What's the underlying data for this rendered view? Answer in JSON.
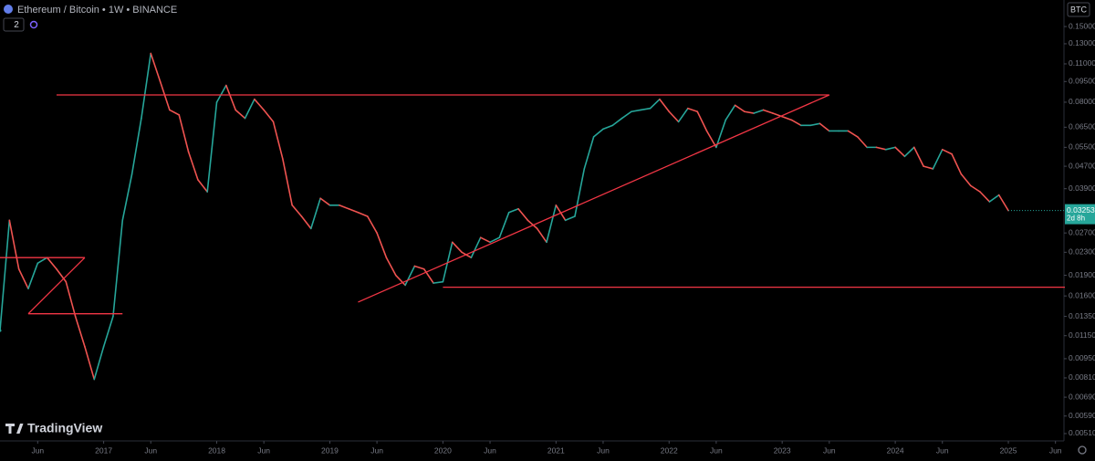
{
  "chart_data": {
    "type": "line",
    "title": "Ethereum / Bitcoin • 1W • BINANCE",
    "header_badge": "2",
    "currency": "BTC",
    "countdown": "2d 8h",
    "brand": "TradingView",
    "log_scale": true,
    "grid": false,
    "up_color": "#26a69a",
    "down_color": "#ef5350",
    "trendline_color": "#f23645",
    "ylim": [
      0.00455,
      0.187
    ],
    "xlim": [
      "2016-02",
      "2025-07"
    ],
    "yticks": [
      {
        "value": 0.15,
        "label": "0.15000"
      },
      {
        "value": 0.13,
        "label": "0.13000"
      },
      {
        "value": 0.11,
        "label": "0.11000"
      },
      {
        "value": 0.095,
        "label": "0.09500"
      },
      {
        "value": 0.08,
        "label": "0.08000"
      },
      {
        "value": 0.065,
        "label": "0.06500"
      },
      {
        "value": 0.055,
        "label": "0.05500"
      },
      {
        "value": 0.047,
        "label": "0.04700"
      },
      {
        "value": 0.039,
        "label": "0.03900"
      },
      {
        "value": 0.027,
        "label": "0.02700"
      },
      {
        "value": 0.023,
        "label": "0.02300"
      },
      {
        "value": 0.019,
        "label": "0.01900"
      },
      {
        "value": 0.016,
        "label": "0.01600"
      },
      {
        "value": 0.0135,
        "label": "0.01350"
      },
      {
        "value": 0.0115,
        "label": "0.01150"
      },
      {
        "value": 0.0095,
        "label": "0.00950"
      },
      {
        "value": 0.0081,
        "label": "0.00810"
      },
      {
        "value": 0.0069,
        "label": "0.00690"
      },
      {
        "value": 0.0059,
        "label": "0.00590"
      },
      {
        "value": 0.0051,
        "label": "0.00510"
      }
    ],
    "xticks": [
      {
        "value": "2016-06",
        "label": "Jun"
      },
      {
        "value": "2017-01",
        "label": "2017"
      },
      {
        "value": "2017-06",
        "label": "Jun"
      },
      {
        "value": "2018-01",
        "label": "2018"
      },
      {
        "value": "2018-06",
        "label": "Jun"
      },
      {
        "value": "2019-01",
        "label": "2019"
      },
      {
        "value": "2019-06",
        "label": "Jun"
      },
      {
        "value": "2020-01",
        "label": "2020"
      },
      {
        "value": "2020-06",
        "label": "Jun"
      },
      {
        "value": "2021-01",
        "label": "2021"
      },
      {
        "value": "2021-06",
        "label": "Jun"
      },
      {
        "value": "2022-01",
        "label": "2022"
      },
      {
        "value": "2022-06",
        "label": "Jun"
      },
      {
        "value": "2023-01",
        "label": "2023"
      },
      {
        "value": "2023-06",
        "label": "Jun"
      },
      {
        "value": "2024-01",
        "label": "2024"
      },
      {
        "value": "2024-06",
        "label": "Jun"
      },
      {
        "value": "2025-01",
        "label": "2025"
      },
      {
        "value": "2025-06",
        "label": "Jun"
      }
    ],
    "x": [
      "2016-02",
      "2016-03",
      "2016-04",
      "2016-05",
      "2016-06",
      "2016-07",
      "2016-08",
      "2016-09",
      "2016-10",
      "2016-11",
      "2016-12",
      "2017-01",
      "2017-02",
      "2017-03",
      "2017-04",
      "2017-05",
      "2017-06",
      "2017-07",
      "2017-08",
      "2017-09",
      "2017-10",
      "2017-11",
      "2017-12",
      "2018-01",
      "2018-02",
      "2018-03",
      "2018-04",
      "2018-05",
      "2018-06",
      "2018-07",
      "2018-08",
      "2018-09",
      "2018-10",
      "2018-11",
      "2018-12",
      "2019-01",
      "2019-02",
      "2019-03",
      "2019-04",
      "2019-05",
      "2019-06",
      "2019-07",
      "2019-08",
      "2019-09",
      "2019-10",
      "2019-11",
      "2019-12",
      "2020-01",
      "2020-02",
      "2020-03",
      "2020-04",
      "2020-05",
      "2020-06",
      "2020-07",
      "2020-08",
      "2020-09",
      "2020-10",
      "2020-11",
      "2020-12",
      "2021-01",
      "2021-02",
      "2021-03",
      "2021-04",
      "2021-05",
      "2021-06",
      "2021-07",
      "2021-08",
      "2021-09",
      "2021-10",
      "2021-11",
      "2021-12",
      "2022-01",
      "2022-02",
      "2022-03",
      "2022-04",
      "2022-05",
      "2022-06",
      "2022-07",
      "2022-08",
      "2022-09",
      "2022-10",
      "2022-11",
      "2022-12",
      "2023-01",
      "2023-02",
      "2023-03",
      "2023-04",
      "2023-05",
      "2023-06",
      "2023-07",
      "2023-08",
      "2023-09",
      "2023-10",
      "2023-11",
      "2023-12",
      "2024-01",
      "2024-02",
      "2024-03",
      "2024-04",
      "2024-05",
      "2024-06",
      "2024-07",
      "2024-08",
      "2024-09",
      "2024-10",
      "2024-11",
      "2024-12",
      "2025-01"
    ],
    "series": [
      {
        "name": "ETHBTC",
        "values": [
          0.012,
          0.03,
          0.02,
          0.017,
          0.021,
          0.022,
          0.02,
          0.018,
          0.0135,
          0.0105,
          0.008,
          0.0105,
          0.0135,
          0.03,
          0.044,
          0.07,
          0.12,
          0.095,
          0.075,
          0.072,
          0.053,
          0.042,
          0.038,
          0.08,
          0.092,
          0.075,
          0.07,
          0.082,
          0.075,
          0.068,
          0.05,
          0.034,
          0.031,
          0.028,
          0.036,
          0.034,
          0.034,
          0.033,
          0.032,
          0.031,
          0.027,
          0.022,
          0.019,
          0.0175,
          0.0205,
          0.02,
          0.0178,
          0.018,
          0.025,
          0.023,
          0.022,
          0.026,
          0.025,
          0.026,
          0.032,
          0.033,
          0.03,
          0.028,
          0.025,
          0.034,
          0.03,
          0.031,
          0.046,
          0.06,
          0.064,
          0.066,
          0.07,
          0.074,
          0.075,
          0.076,
          0.082,
          0.074,
          0.068,
          0.076,
          0.074,
          0.063,
          0.055,
          0.069,
          0.078,
          0.074,
          0.073,
          0.075,
          0.073,
          0.071,
          0.069,
          0.066,
          0.066,
          0.067,
          0.063,
          0.063,
          0.063,
          0.06,
          0.055,
          0.055,
          0.054,
          0.055,
          0.051,
          0.055,
          0.047,
          0.046,
          0.054,
          0.052,
          0.044,
          0.04,
          0.038,
          0.035,
          0.037,
          0.03253
        ]
      }
    ],
    "trendlines": [
      {
        "x": [
          "2016-08",
          "2023-06"
        ],
        "y": [
          0.085,
          0.085
        ]
      },
      {
        "x": [
          "2019-04",
          "2023-06"
        ],
        "y": [
          0.0152,
          0.085
        ]
      },
      {
        "x": [
          "2020-01",
          "2025-07"
        ],
        "y": [
          0.0172,
          0.0172
        ]
      },
      {
        "x": [
          "2016-02",
          "2016-11"
        ],
        "y": [
          0.022,
          0.022
        ]
      },
      {
        "x": [
          "2016-05",
          "2016-11"
        ],
        "y": [
          0.0138,
          0.022
        ]
      },
      {
        "x": [
          "2016-05",
          "2017-03"
        ],
        "y": [
          0.0138,
          0.0138
        ]
      }
    ]
  }
}
